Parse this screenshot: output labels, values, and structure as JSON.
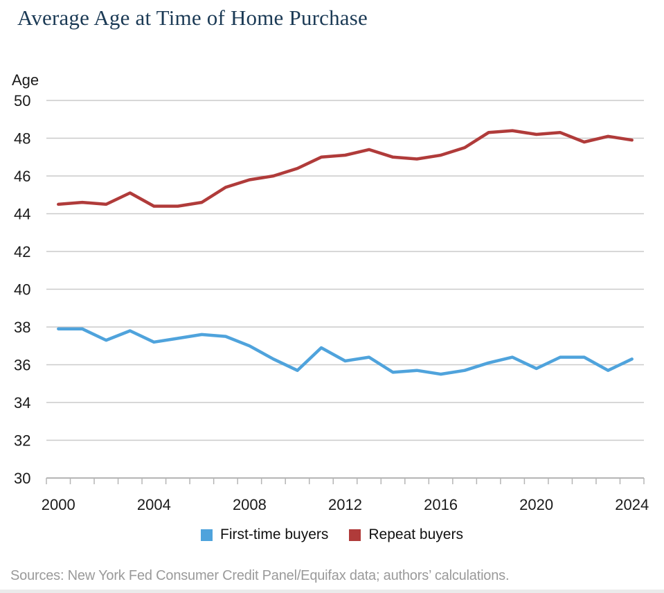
{
  "page": {
    "title": "Average Age at Time of Home Purchase",
    "source_note": "Sources: New York Fed Consumer Credit Panel/Equifax data; authors’ calculations."
  },
  "chart_data": {
    "type": "line",
    "title": "Average Age at Time of Home Purchase",
    "y_axis_label": "Age",
    "ylim": [
      30,
      50
    ],
    "yticks": [
      30,
      32,
      34,
      36,
      38,
      40,
      42,
      44,
      46,
      48,
      50
    ],
    "x": [
      2000,
      2001,
      2002,
      2003,
      2004,
      2005,
      2006,
      2007,
      2008,
      2009,
      2010,
      2011,
      2012,
      2013,
      2014,
      2015,
      2016,
      2017,
      2018,
      2019,
      2020,
      2021,
      2022,
      2023,
      2024
    ],
    "xtick_labels": [
      2000,
      2004,
      2008,
      2012,
      2016,
      2020,
      2024
    ],
    "grid": "horizontal",
    "legend_position": "bottom",
    "series": [
      {
        "name": "First-time buyers",
        "color": "#4FA3DC",
        "values": [
          37.9,
          37.9,
          37.3,
          37.8,
          37.2,
          37.4,
          37.6,
          37.5,
          37.0,
          36.3,
          35.7,
          36.9,
          36.2,
          36.4,
          35.6,
          35.7,
          35.5,
          35.7,
          36.1,
          36.4,
          35.8,
          36.4,
          36.4,
          35.7,
          36.3
        ]
      },
      {
        "name": "Repeat buyers",
        "color": "#B03B3A",
        "values": [
          44.5,
          44.6,
          44.5,
          45.1,
          44.4,
          44.4,
          44.6,
          45.4,
          45.8,
          46.0,
          46.4,
          47.0,
          47.1,
          47.4,
          47.0,
          46.9,
          47.1,
          47.5,
          48.3,
          48.4,
          48.2,
          48.3,
          47.8,
          48.1,
          47.9
        ]
      }
    ],
    "colors": {
      "first_time": "#4FA3DC",
      "repeat": "#B03B3A",
      "grid": "#cacaca",
      "axis": "#b5b5b5",
      "title": "#1b3a55",
      "source": "#9a9a9a"
    }
  }
}
